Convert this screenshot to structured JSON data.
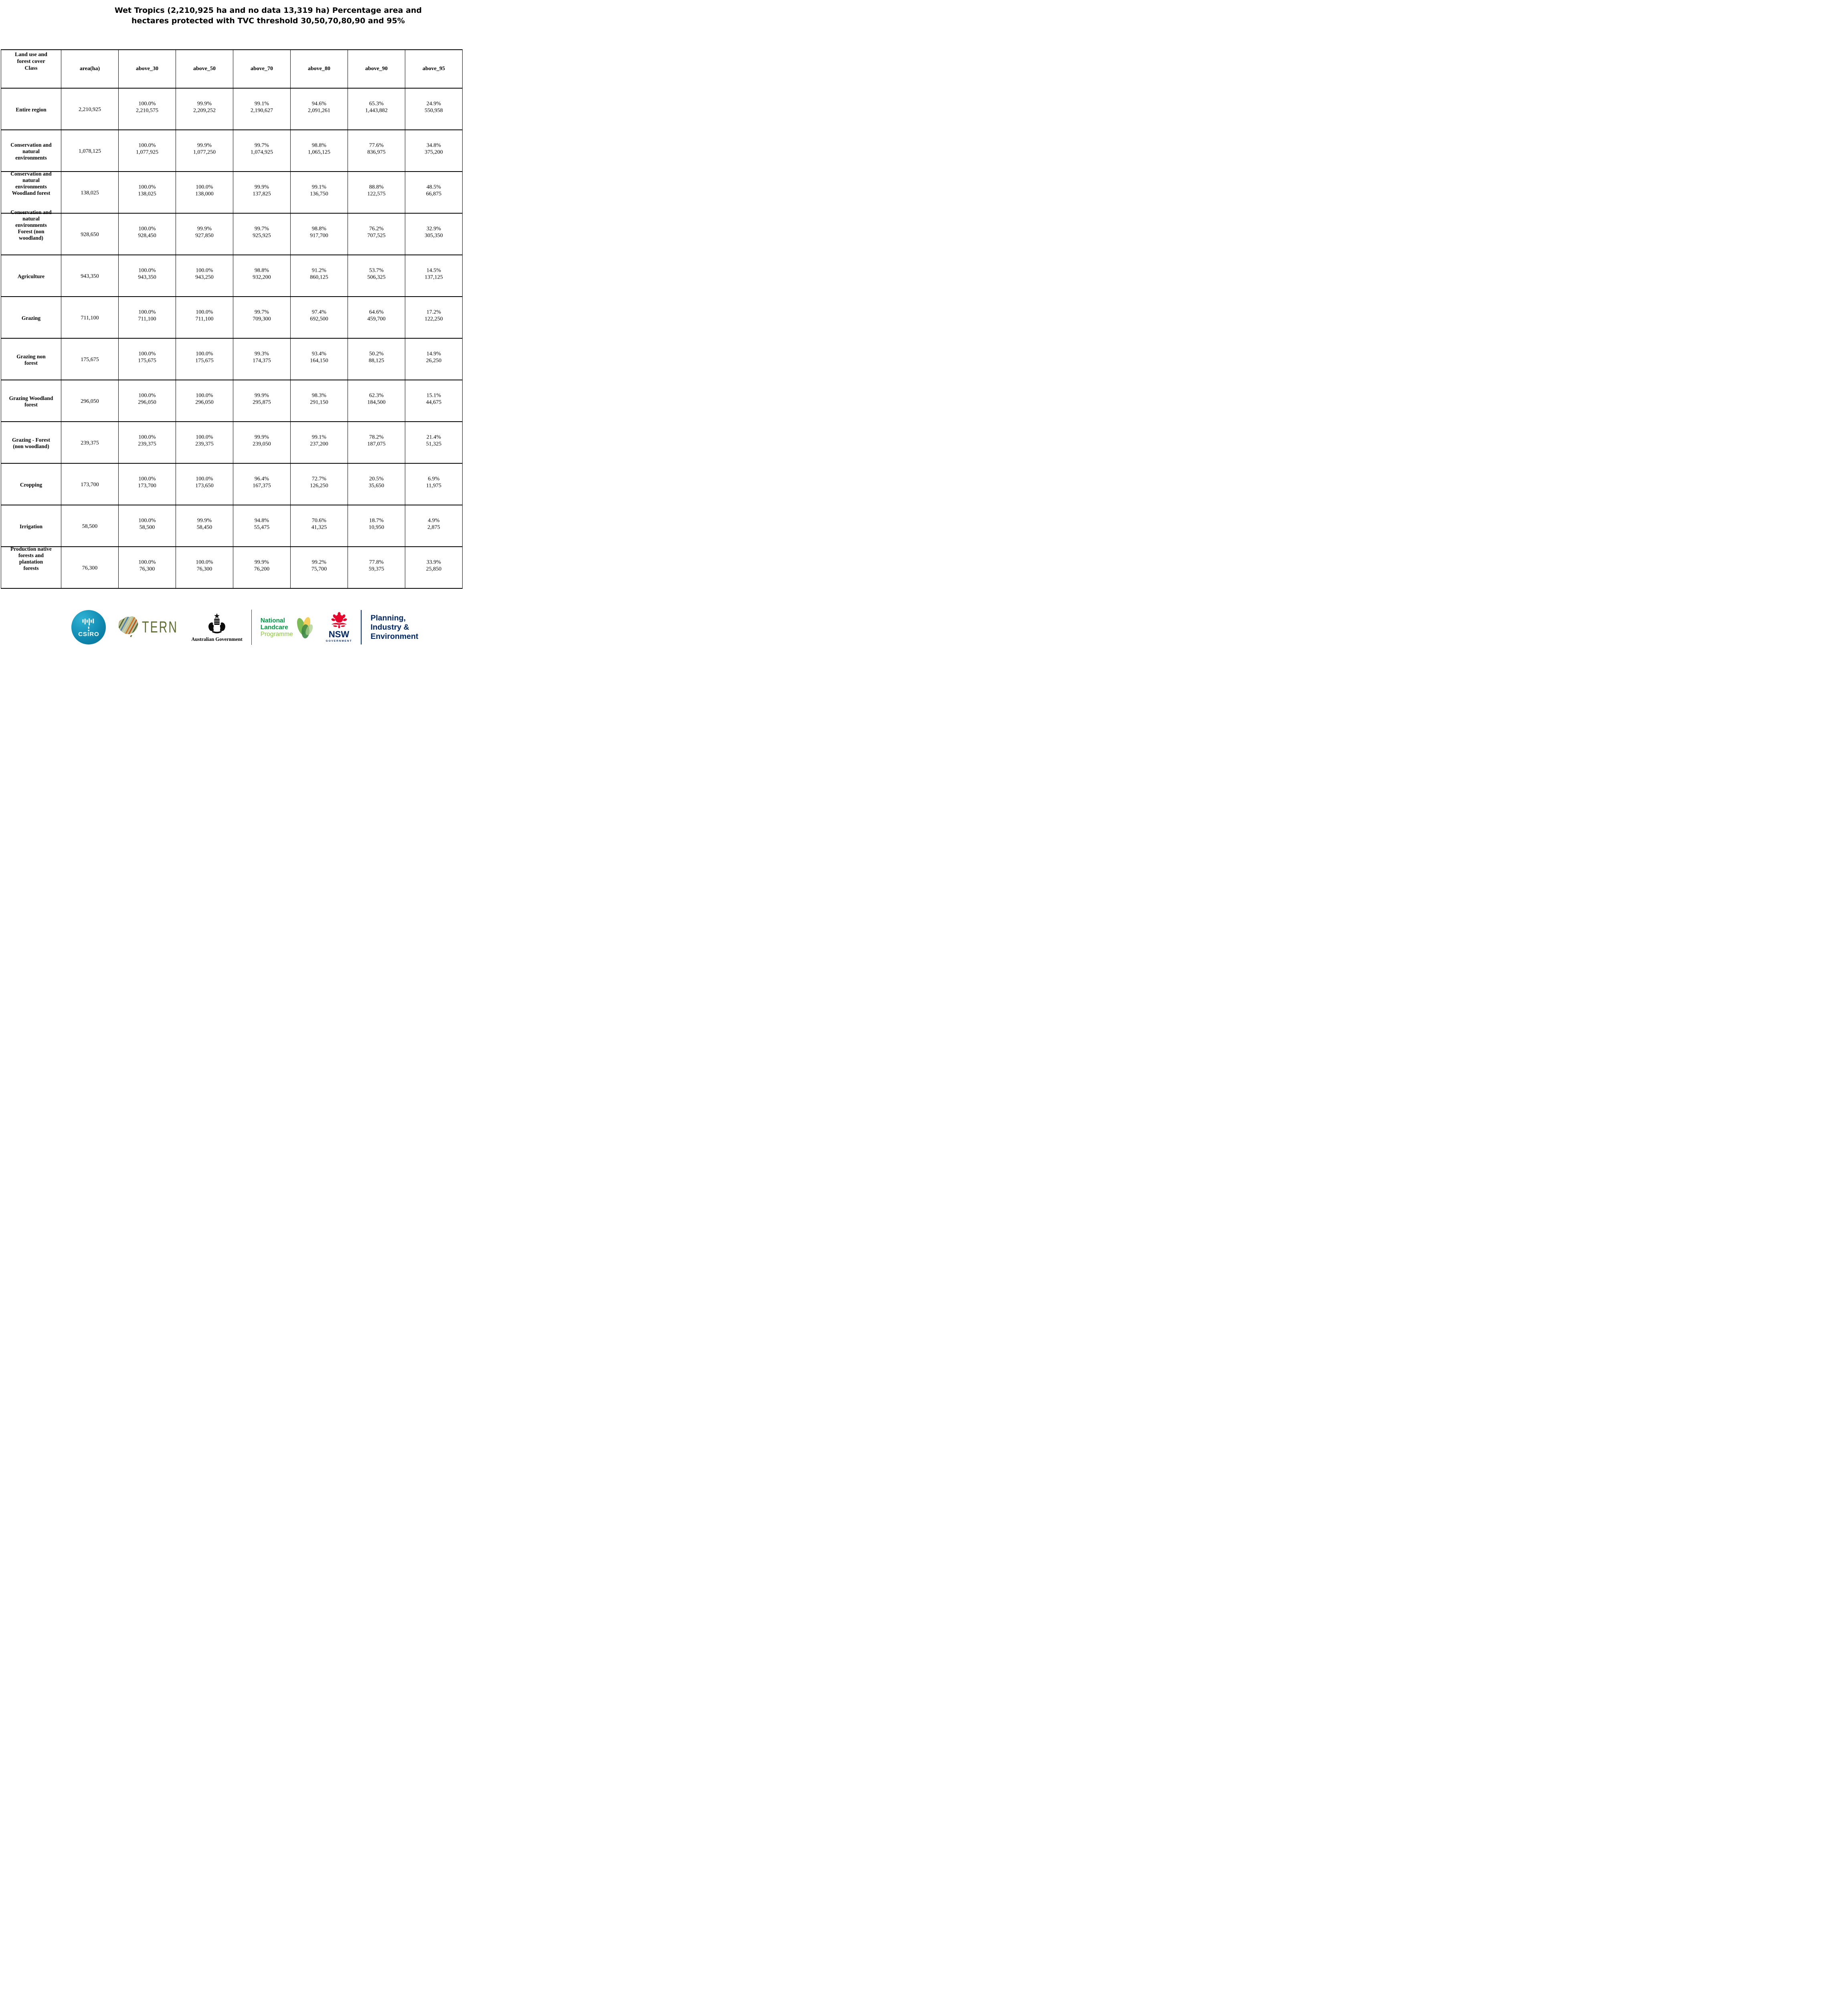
{
  "title": "Wet Tropics (2,210,925 ha and no data 13,319 ha) Percentage area and\nhectares protected with TVC threshold 30,50,70,80,90 and 95%",
  "table": {
    "columns": [
      "Land use and\nforest cover\nClass",
      "area(ha)",
      "above_30",
      "above_50",
      "above_70",
      "above_80",
      "above_90",
      "above_95"
    ],
    "rows": [
      {
        "label": "Entire region",
        "area": "2,210,925",
        "values": [
          {
            "pct": "100.0%",
            "ha": "2,210,575"
          },
          {
            "pct": "99.9%",
            "ha": "2,209,252"
          },
          {
            "pct": "99.1%",
            "ha": "2,190,627"
          },
          {
            "pct": "94.6%",
            "ha": "2,091,261"
          },
          {
            "pct": "65.3%",
            "ha": "1,443,882"
          },
          {
            "pct": "24.9%",
            "ha": "550,958"
          }
        ]
      },
      {
        "label": "Conservation and\nnatural\nenvironments",
        "area": "1,078,125",
        "values": [
          {
            "pct": "100.0%",
            "ha": "1,077,925"
          },
          {
            "pct": "99.9%",
            "ha": "1,077,250"
          },
          {
            "pct": "99.7%",
            "ha": "1,074,925"
          },
          {
            "pct": "98.8%",
            "ha": "1,065,125"
          },
          {
            "pct": "77.6%",
            "ha": "836,975"
          },
          {
            "pct": "34.8%",
            "ha": "375,200"
          }
        ]
      },
      {
        "label": "Conservation and\nnatural\nenvironments\nWoodland forest",
        "area": "138,025",
        "values": [
          {
            "pct": "100.0%",
            "ha": "138,025"
          },
          {
            "pct": "100.0%",
            "ha": "138,000"
          },
          {
            "pct": "99.9%",
            "ha": "137,825"
          },
          {
            "pct": "99.1%",
            "ha": "136,750"
          },
          {
            "pct": "88.8%",
            "ha": "122,575"
          },
          {
            "pct": "48.5%",
            "ha": "66,875"
          }
        ]
      },
      {
        "label": "Conservation and\nnatural\nenvironments\nForest (non\nwoodland)",
        "area": "928,650",
        "values": [
          {
            "pct": "100.0%",
            "ha": "928,450"
          },
          {
            "pct": "99.9%",
            "ha": "927,850"
          },
          {
            "pct": "99.7%",
            "ha": "925,925"
          },
          {
            "pct": "98.8%",
            "ha": "917,700"
          },
          {
            "pct": "76.2%",
            "ha": "707,525"
          },
          {
            "pct": "32.9%",
            "ha": "305,350"
          }
        ]
      },
      {
        "label": "Agriculture",
        "area": "943,350",
        "values": [
          {
            "pct": "100.0%",
            "ha": "943,350"
          },
          {
            "pct": "100.0%",
            "ha": "943,250"
          },
          {
            "pct": "98.8%",
            "ha": "932,200"
          },
          {
            "pct": "91.2%",
            "ha": "860,125"
          },
          {
            "pct": "53.7%",
            "ha": "506,325"
          },
          {
            "pct": "14.5%",
            "ha": "137,125"
          }
        ]
      },
      {
        "label": "Grazing",
        "area": "711,100",
        "values": [
          {
            "pct": "100.0%",
            "ha": "711,100"
          },
          {
            "pct": "100.0%",
            "ha": "711,100"
          },
          {
            "pct": "99.7%",
            "ha": "709,300"
          },
          {
            "pct": "97.4%",
            "ha": "692,500"
          },
          {
            "pct": "64.6%",
            "ha": "459,700"
          },
          {
            "pct": "17.2%",
            "ha": "122,250"
          }
        ]
      },
      {
        "label": "Grazing non\nforest",
        "area": "175,675",
        "values": [
          {
            "pct": "100.0%",
            "ha": "175,675"
          },
          {
            "pct": "100.0%",
            "ha": "175,675"
          },
          {
            "pct": "99.3%",
            "ha": "174,375"
          },
          {
            "pct": "93.4%",
            "ha": "164,150"
          },
          {
            "pct": "50.2%",
            "ha": "88,125"
          },
          {
            "pct": "14.9%",
            "ha": "26,250"
          }
        ]
      },
      {
        "label": "Grazing Woodland\nforest",
        "area": "296,050",
        "values": [
          {
            "pct": "100.0%",
            "ha": "296,050"
          },
          {
            "pct": "100.0%",
            "ha": "296,050"
          },
          {
            "pct": "99.9%",
            "ha": "295,875"
          },
          {
            "pct": "98.3%",
            "ha": "291,150"
          },
          {
            "pct": "62.3%",
            "ha": "184,500"
          },
          {
            "pct": "15.1%",
            "ha": "44,675"
          }
        ]
      },
      {
        "label": "Grazing - Forest\n(non woodland)",
        "area": "239,375",
        "values": [
          {
            "pct": "100.0%",
            "ha": "239,375"
          },
          {
            "pct": "100.0%",
            "ha": "239,375"
          },
          {
            "pct": "99.9%",
            "ha": "239,050"
          },
          {
            "pct": "99.1%",
            "ha": "237,200"
          },
          {
            "pct": "78.2%",
            "ha": "187,075"
          },
          {
            "pct": "21.4%",
            "ha": "51,325"
          }
        ]
      },
      {
        "label": "Cropping",
        "area": "173,700",
        "values": [
          {
            "pct": "100.0%",
            "ha": "173,700"
          },
          {
            "pct": "100.0%",
            "ha": "173,650"
          },
          {
            "pct": "96.4%",
            "ha": "167,375"
          },
          {
            "pct": "72.7%",
            "ha": "126,250"
          },
          {
            "pct": "20.5%",
            "ha": "35,650"
          },
          {
            "pct": "6.9%",
            "ha": "11,975"
          }
        ]
      },
      {
        "label": "Irrigation",
        "area": "58,500",
        "values": [
          {
            "pct": "100.0%",
            "ha": "58,500"
          },
          {
            "pct": "99.9%",
            "ha": "58,450"
          },
          {
            "pct": "94.8%",
            "ha": "55,475"
          },
          {
            "pct": "70.6%",
            "ha": "41,325"
          },
          {
            "pct": "18.7%",
            "ha": "10,950"
          },
          {
            "pct": "4.9%",
            "ha": "2,875"
          }
        ]
      },
      {
        "label": "Production native\nforests and\nplantation\nforests",
        "area": "76,300",
        "values": [
          {
            "pct": "100.0%",
            "ha": "76,300"
          },
          {
            "pct": "100.0%",
            "ha": "76,300"
          },
          {
            "pct": "99.9%",
            "ha": "76,200"
          },
          {
            "pct": "99.2%",
            "ha": "75,700"
          },
          {
            "pct": "77.8%",
            "ha": "59,375"
          },
          {
            "pct": "33.9%",
            "ha": "25,850"
          }
        ]
      }
    ]
  },
  "footer": {
    "csiro_label": "CSIRO",
    "tern_label": "TERN",
    "ausgov_label": "Australian Government",
    "landcare_line1": "National",
    "landcare_line2": "Landcare",
    "landcare_line3": "Programme",
    "nsw_label": "NSW",
    "nsw_sub_label": "GOVERNMENT",
    "planning_lines": "Planning,\nIndustry &\nEnvironment"
  },
  "colors": {
    "csiro_teal": "#0e86ad",
    "tern_olive": "#5f6e33",
    "landcare_green": "#009a44",
    "landcare_light_green": "#8bc53f",
    "nsw_red": "#e4062c",
    "nsw_navy": "#002664"
  }
}
